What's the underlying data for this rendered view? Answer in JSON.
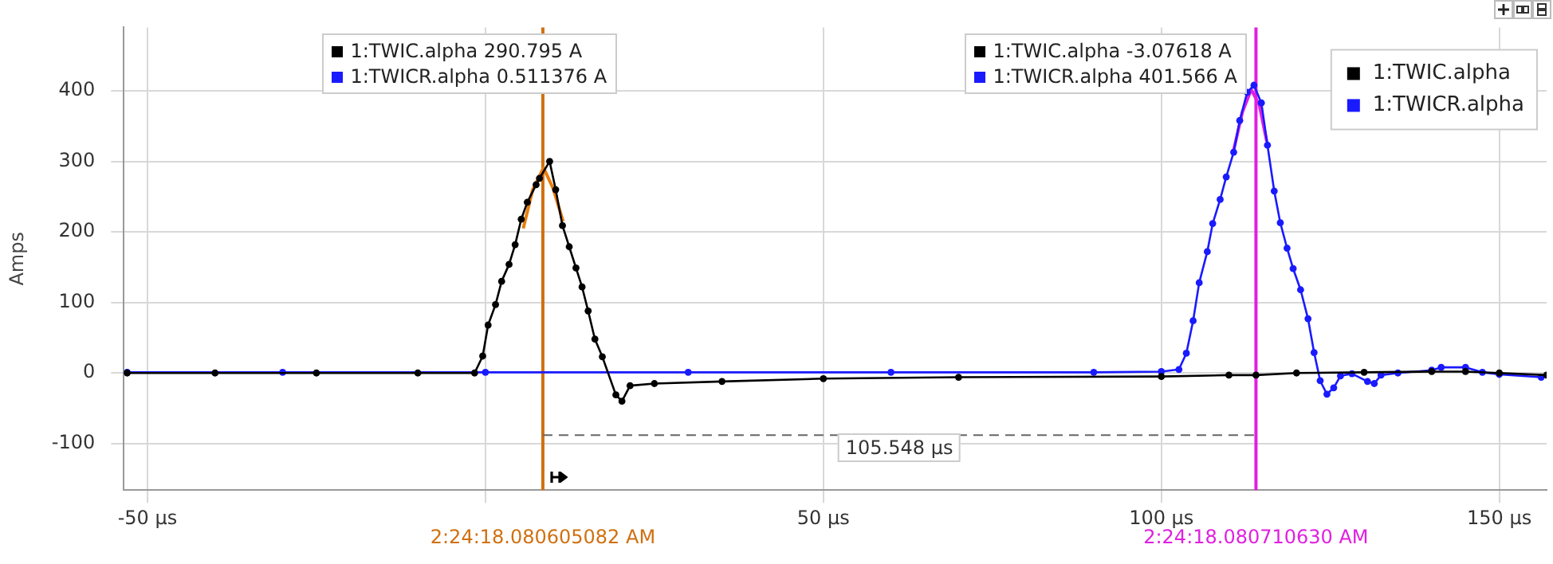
{
  "chart_data": {
    "type": "line",
    "ylabel": "Amps",
    "xlim": [
      -53.5,
      157
    ],
    "xticks": [
      {
        "value": -50,
        "label": "-50 µs"
      },
      {
        "value": 0,
        "label": null
      },
      {
        "value": 50,
        "label": "50 µs"
      },
      {
        "value": 100,
        "label": "100 µs"
      },
      {
        "value": 150,
        "label": "150 µs"
      }
    ],
    "ylim": [
      -166,
      490
    ],
    "yticks": [
      -100,
      0,
      100,
      200,
      300,
      400
    ],
    "grid": true,
    "legend": "top right",
    "marker": "circle",
    "line_style": "solid",
    "series": [
      {
        "name": "1:TWIC.alpha",
        "color": "#000000",
        "x": [
          -53,
          -40,
          -25,
          -10,
          -1.6,
          -0.4,
          0.4,
          1.5,
          2.4,
          3.5,
          4.4,
          5.3,
          6.2,
          7.5,
          8,
          9.5,
          10.4,
          11.4,
          12.4,
          13.4,
          14.3,
          15.2,
          16.2,
          17.3,
          19.3,
          20.2,
          21.4,
          25,
          35,
          50,
          70,
          100,
          110,
          114,
          120,
          130,
          140,
          145,
          150,
          157
        ],
        "values": [
          0,
          0,
          0,
          0,
          0,
          24,
          68,
          97,
          130,
          154,
          182,
          218,
          242,
          267,
          276,
          300,
          260,
          209,
          179,
          149,
          122,
          88,
          48,
          23,
          -31,
          -40,
          -18,
          -15,
          -12,
          -8,
          -6,
          -5,
          -3,
          -3,
          0,
          1,
          2,
          2,
          0,
          -3
        ]
      },
      {
        "name": "1:TWICR.alpha",
        "color": "#1a1aff",
        "x": [
          -53,
          -30,
          0,
          30,
          60,
          90,
          100,
          102.6,
          103.7,
          104.7,
          105.6,
          106.8,
          107.6,
          108.7,
          109.6,
          110.7,
          111.6,
          112.7,
          113.7,
          114.8,
          115.7,
          116.7,
          117.6,
          118.6,
          119.5,
          120.6,
          121.7,
          122.6,
          123.5,
          124.5,
          125.5,
          126.5,
          128.2,
          130.5,
          131.5,
          132.5,
          135,
          140,
          141.4,
          145,
          147.5,
          150,
          156.2
        ],
        "values": [
          1,
          1,
          1,
          1,
          1,
          1,
          2,
          5,
          28,
          74,
          128,
          172,
          212,
          246,
          278,
          313,
          358,
          398,
          408,
          383,
          323,
          258,
          213,
          177,
          148,
          118,
          77,
          29,
          -11,
          -30,
          -21,
          -4,
          -1,
          -12,
          -15,
          -3,
          0,
          4,
          8,
          8,
          1,
          -2,
          -6
        ]
      },
      {
        "type": "line",
        "color": "#e87d0d",
        "marker": "none",
        "x": [
          5.6,
          7,
          8.6,
          10,
          11.5
        ],
        "values": [
          205,
          260,
          291,
          262,
          215
        ]
      },
      {
        "type": "line",
        "color": "#e020e0",
        "marker": "none",
        "x": [
          110.6,
          112,
          113.3,
          114.5,
          115.6
        ],
        "values": [
          312,
          370,
          402,
          380,
          328
        ]
      },
      {
        "type": "line",
        "color": "#666666",
        "marker": "none",
        "line_style": "dashed",
        "x": [
          8.5,
          114
        ],
        "values": [
          -88,
          -88
        ]
      }
    ],
    "ref_lines": [
      {
        "axis": "x",
        "value": 8.5,
        "color": "#d07010"
      },
      {
        "axis": "x",
        "value": 114,
        "color": "#e020e0"
      }
    ],
    "annotations": [
      "1:TWIC.alpha 290.795 A",
      "1:TWICR.alpha 0.511376 A",
      "1:TWIC.alpha -3.07618 A",
      "1:TWICR.alpha 401.566 A",
      "2:24:18.080605082 AM",
      "2:24:18.080710630 AM",
      "105.548 µs"
    ]
  }
}
